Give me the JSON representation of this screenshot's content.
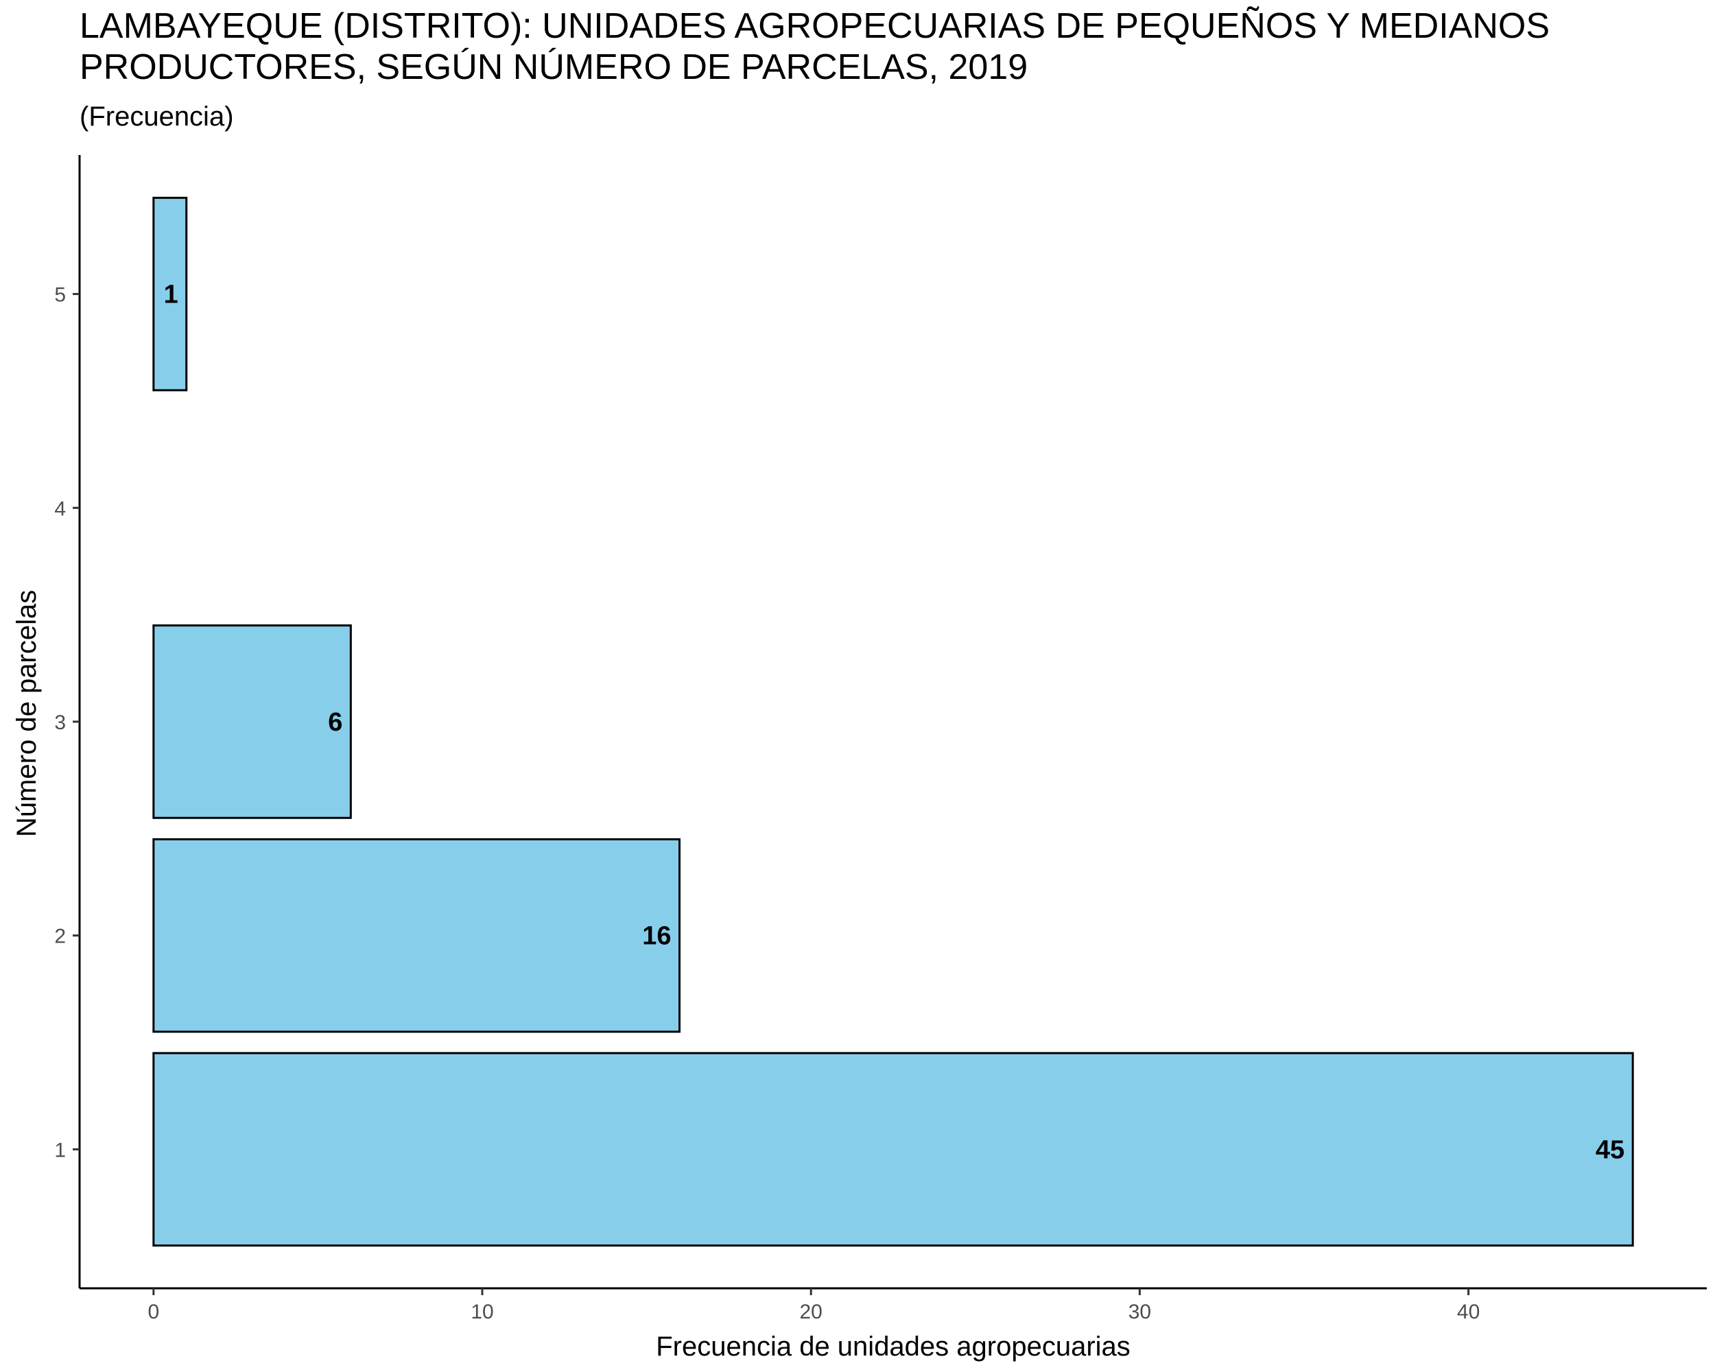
{
  "chart_data": {
    "type": "bar",
    "orientation": "horizontal",
    "title": "LAMBAYEQUE (DISTRITO): UNIDADES AGROPECUARIAS DE PEQUEÑOS Y MEDIANOS PRODUCTORES, SEGÚN NÚMERO DE PARCELAS, 2019",
    "subtitle": "(Frecuencia)",
    "xlabel": "Frecuencia de unidades agropecuarias",
    "ylabel": "Número de parcelas",
    "categories": [
      1,
      2,
      3,
      5
    ],
    "values": [
      45,
      16,
      6,
      1
    ],
    "xlim": [
      -2.25,
      47.25
    ],
    "ylim": [
      0.35,
      5.65
    ],
    "xticks": [
      0,
      10,
      20,
      30,
      40
    ],
    "yticks": [
      1,
      2,
      3,
      4,
      5
    ],
    "bar_color": "#87CEEB",
    "bar_edge_color": "#000000",
    "grid": false,
    "legend": "none"
  }
}
